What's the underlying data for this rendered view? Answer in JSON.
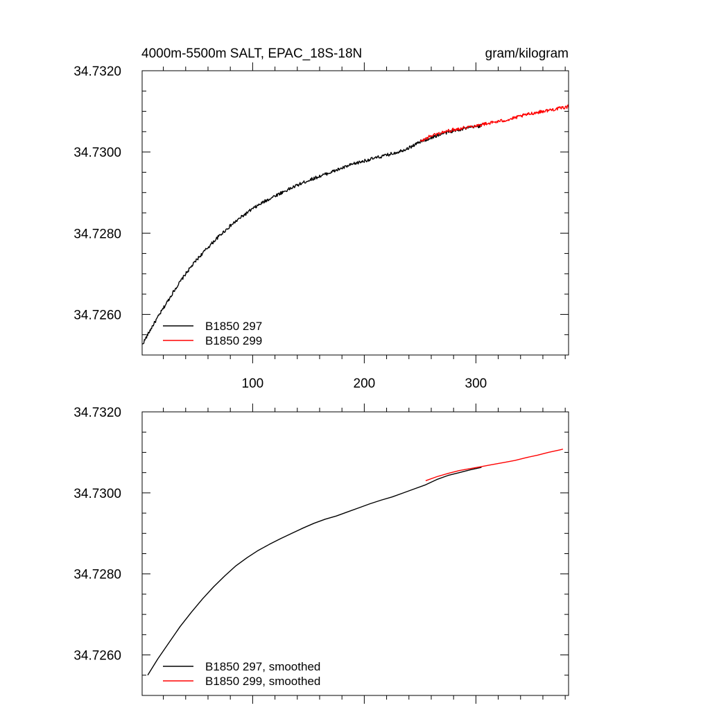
{
  "colors": {
    "run_297": "#000000",
    "run_299": "#ff0000"
  },
  "title_left": "4000m-5500m SALT, EPAC_18S-18N",
  "title_right": "gram/kilogram",
  "chart_data": [
    {
      "type": "line",
      "xlim": [
        1,
        383
      ],
      "ylim": [
        34.725,
        34.732
      ],
      "y_ticks": [
        "34.7260",
        "34.7280",
        "34.7300",
        "34.7320"
      ],
      "x_ticks": [
        "100",
        "200",
        "300"
      ],
      "grid": false,
      "legend_position": "bottom-left",
      "series": [
        {
          "name": "B1850 297",
          "color": "#000000",
          "noise": 4e-05,
          "x": [
            1,
            10,
            20,
            30,
            40,
            50,
            60,
            70,
            80,
            90,
            100,
            110,
            120,
            130,
            140,
            150,
            160,
            170,
            180,
            190,
            200,
            210,
            220,
            230,
            240,
            250,
            260,
            270,
            280,
            290,
            300,
            305
          ],
          "y": [
            34.72525,
            34.7257,
            34.72615,
            34.7266,
            34.727,
            34.72735,
            34.72765,
            34.72793,
            34.72818,
            34.7284,
            34.7286,
            34.72877,
            34.72892,
            34.72905,
            34.72918,
            34.7293,
            34.7294,
            34.7295,
            34.7296,
            34.7297,
            34.72978,
            34.72985,
            34.72992,
            34.73,
            34.7301,
            34.73025,
            34.73035,
            34.73045,
            34.73052,
            34.73058,
            34.73062,
            34.73065
          ]
        },
        {
          "name": "B1850 299",
          "color": "#ff0000",
          "noise": 4e-05,
          "x": [
            250,
            260,
            270,
            280,
            290,
            300,
            310,
            320,
            330,
            340,
            350,
            360,
            370,
            380,
            383
          ],
          "y": [
            34.73025,
            34.7304,
            34.73048,
            34.73055,
            34.7306,
            34.73065,
            34.7307,
            34.73075,
            34.7308,
            34.73088,
            34.73095,
            34.731,
            34.73105,
            34.7311,
            34.73112
          ]
        }
      ]
    },
    {
      "type": "line",
      "xlim": [
        1,
        383
      ],
      "ylim": [
        34.725,
        34.732
      ],
      "y_ticks": [
        "34.7260",
        "34.7280",
        "34.7300",
        "34.7320"
      ],
      "x_ticks": [],
      "grid": false,
      "legend_position": "bottom-left",
      "series": [
        {
          "name": "B1850 297, smoothed",
          "color": "#000000",
          "noise": 0,
          "x": [
            6,
            15,
            25,
            35,
            45,
            55,
            65,
            75,
            85,
            95,
            105,
            115,
            125,
            135,
            145,
            155,
            165,
            175,
            185,
            195,
            205,
            215,
            225,
            235,
            245,
            255,
            265,
            275,
            285,
            295,
            305
          ],
          "y": [
            34.7255,
            34.7259,
            34.7263,
            34.7267,
            34.72705,
            34.72738,
            34.72768,
            34.72795,
            34.7282,
            34.7284,
            34.72858,
            34.72873,
            34.72887,
            34.729,
            34.72913,
            34.72925,
            34.72935,
            34.72943,
            34.72953,
            34.72963,
            34.72973,
            34.72982,
            34.7299,
            34.73,
            34.7301,
            34.7302,
            34.73033,
            34.73043,
            34.7305,
            34.73057,
            34.73063
          ]
        },
        {
          "name": "B1850 299, smoothed",
          "color": "#ff0000",
          "noise": 0,
          "x": [
            255,
            265,
            275,
            285,
            295,
            305,
            315,
            325,
            335,
            345,
            355,
            365,
            375,
            378
          ],
          "y": [
            34.7303,
            34.7304,
            34.73048,
            34.73055,
            34.7306,
            34.73065,
            34.7307,
            34.73075,
            34.7308,
            34.73087,
            34.73093,
            34.731,
            34.73106,
            34.73108
          ]
        }
      ]
    }
  ]
}
